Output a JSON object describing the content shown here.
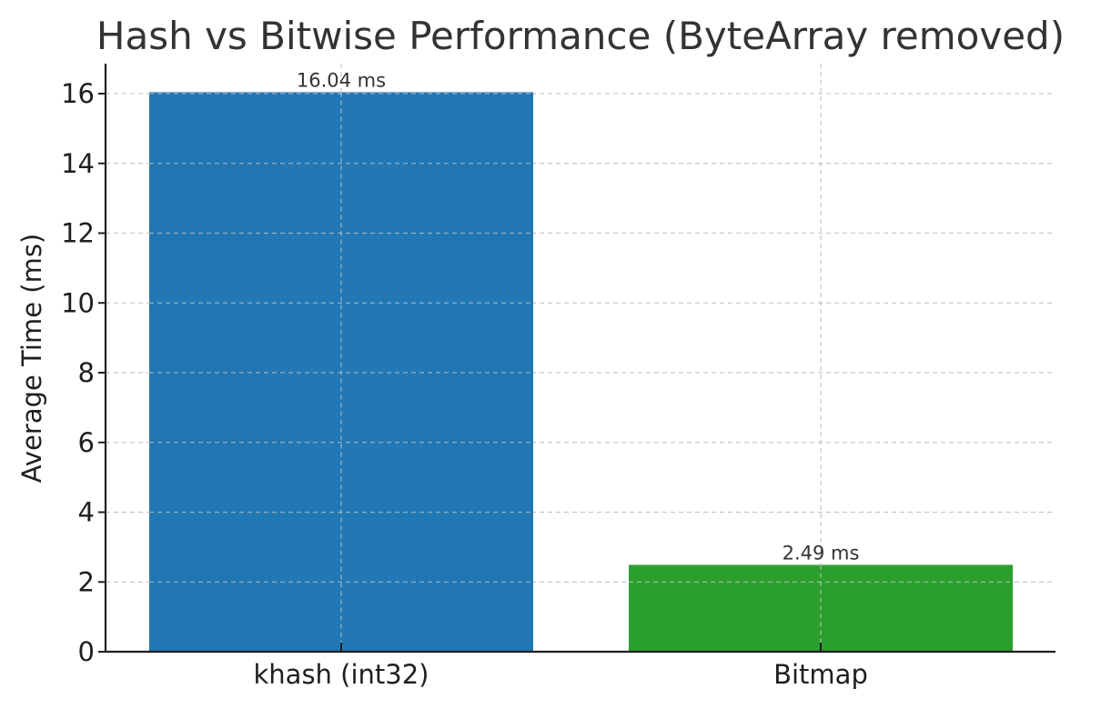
{
  "chart_data": {
    "type": "bar",
    "title": "Hash vs Bitwise Performance (ByteArray removed)",
    "xlabel": "",
    "ylabel": "Average Time (ms)",
    "categories": [
      "khash (int32)",
      "Bitmap"
    ],
    "values": [
      16.04,
      2.49
    ],
    "value_labels": [
      "16.04 ms",
      "2.49 ms"
    ],
    "colors": [
      "#2077b4",
      "#2ca02c"
    ],
    "ylim": [
      0,
      16.9
    ],
    "yticks": [
      0,
      2,
      4,
      6,
      8,
      10,
      12,
      14,
      16
    ],
    "grid": true,
    "grid_style": "dashed",
    "legend": null
  }
}
